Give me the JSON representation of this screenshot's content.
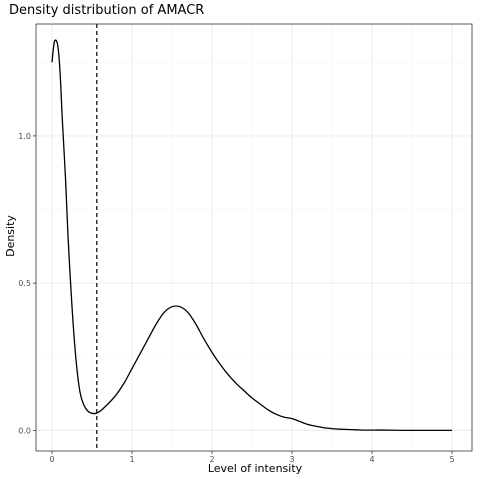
{
  "chart_data": {
    "type": "line",
    "title": "Density distribution of AMACR",
    "xlabel": "Level of intensity",
    "ylabel": "Density",
    "xlim": [
      -0.2,
      5.25
    ],
    "ylim": [
      -0.07,
      1.38
    ],
    "x_ticks": [
      0,
      1,
      2,
      3,
      4,
      5
    ],
    "y_ticks": [
      0.0,
      0.5,
      1.0
    ],
    "x_tick_labels": [
      "0",
      "1",
      "2",
      "3",
      "4",
      "5"
    ],
    "y_tick_labels": [
      "0.0",
      "0.5",
      "1.0"
    ],
    "grid": true,
    "legend": "none",
    "colors": {
      "line": "#000000",
      "grid": "#ebebeb",
      "border": "#333333"
    },
    "threshold_x": 0.56,
    "series": [
      {
        "x": [
          0.0,
          0.03,
          0.07,
          0.1,
          0.13,
          0.17,
          0.2,
          0.25,
          0.3,
          0.35,
          0.4,
          0.45,
          0.5,
          0.55,
          0.6,
          0.7,
          0.8,
          0.9,
          1.0,
          1.1,
          1.2,
          1.3,
          1.4,
          1.5,
          1.6,
          1.7,
          1.8,
          1.9,
          2.0,
          2.1,
          2.2,
          2.3,
          2.4,
          2.5,
          2.6,
          2.7,
          2.8,
          2.9,
          3.0,
          3.1,
          3.2,
          3.3,
          3.4,
          3.5,
          3.6,
          3.7,
          3.8,
          3.9,
          4.0,
          4.2,
          4.4,
          4.6,
          4.8,
          5.0
        ],
        "y": [
          1.25,
          1.32,
          1.31,
          1.22,
          1.05,
          0.85,
          0.66,
          0.42,
          0.24,
          0.13,
          0.085,
          0.065,
          0.058,
          0.058,
          0.065,
          0.09,
          0.12,
          0.16,
          0.21,
          0.26,
          0.31,
          0.36,
          0.4,
          0.42,
          0.42,
          0.4,
          0.36,
          0.31,
          0.265,
          0.225,
          0.19,
          0.16,
          0.135,
          0.11,
          0.09,
          0.07,
          0.055,
          0.045,
          0.04,
          0.03,
          0.02,
          0.014,
          0.009,
          0.006,
          0.004,
          0.003,
          0.002,
          0.001,
          0.001,
          0.001,
          0.0,
          0.0,
          0.0,
          0.0
        ]
      }
    ]
  }
}
